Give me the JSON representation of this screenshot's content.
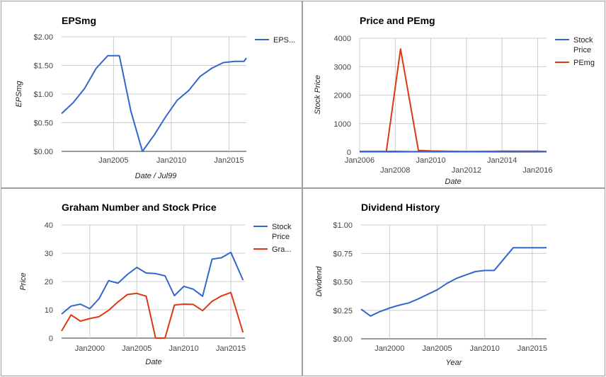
{
  "chart_data": [
    {
      "type": "line",
      "title": "EPSmg",
      "xlabel": "Date / Jul99",
      "ylabel": "EPSmg",
      "x_ticks": [
        "Jan2005",
        "Jan2010",
        "Jan2015"
      ],
      "y_ticks": [
        "$0.00",
        "$0.50",
        "$1.00",
        "$1.50",
        "$2.00"
      ],
      "xlim": [
        2000.5,
        2016.5
      ],
      "ylim": [
        0,
        2
      ],
      "legend_position": "right",
      "series": [
        {
          "name": "EPS...",
          "color": "#3366cc",
          "x": [
            2000.5,
            2001.5,
            2002.5,
            2003.5,
            2004.5,
            2005.5,
            2006.5,
            2007.5,
            2008.5,
            2009.5,
            2010.5,
            2011.5,
            2012.5,
            2013.5,
            2014.5,
            2015.5,
            2016.3,
            2016.5
          ],
          "values": [
            0.66,
            0.85,
            1.1,
            1.45,
            1.67,
            1.67,
            0.7,
            0.0,
            0.28,
            0.6,
            0.89,
            1.06,
            1.31,
            1.45,
            1.55,
            1.57,
            1.57,
            1.63
          ]
        }
      ]
    },
    {
      "type": "line",
      "title": "Price and PEmg",
      "xlabel": "Date",
      "ylabel": "Stock Price",
      "x_ticks": [
        "Jan2006",
        "Jan2008",
        "Jan2010",
        "Jan2012",
        "Jan2014",
        "Jan2016"
      ],
      "y_ticks": [
        "0",
        "1000",
        "2000",
        "3000",
        "4000"
      ],
      "xlim": [
        2006,
        2016.5
      ],
      "ylim": [
        0,
        4000
      ],
      "legend_position": "right",
      "series": [
        {
          "name": "Stock Price",
          "color": "#3366cc",
          "x": [
            2006,
            2007,
            2008,
            2009,
            2010,
            2011,
            2012,
            2013,
            2014,
            2015,
            2016,
            2016.5
          ],
          "values": [
            22,
            23,
            26,
            14,
            18,
            16,
            14,
            17,
            28,
            29,
            30,
            20
          ]
        },
        {
          "name": "PEmg",
          "color": "#dc3912",
          "x": [
            2006,
            2007,
            2007.5,
            2008.3,
            2009.3,
            2010,
            2011,
            2012,
            2013,
            2014,
            2015,
            2016,
            2016.5
          ],
          "values": [
            20,
            18,
            15,
            3620,
            60,
            40,
            28,
            18,
            22,
            30,
            25,
            26,
            15
          ]
        }
      ]
    },
    {
      "type": "line",
      "title": "Graham Number and Stock Price",
      "xlabel": "Date",
      "ylabel": "Price",
      "x_ticks": [
        "Jan2000",
        "Jan2005",
        "Jan2010",
        "Jan2015"
      ],
      "y_ticks": [
        "0",
        "10",
        "20",
        "30",
        "40"
      ],
      "xlim": [
        1997,
        2016.5
      ],
      "ylim": [
        0,
        40
      ],
      "legend_position": "right",
      "series": [
        {
          "name": "Stock Price",
          "color": "#3366cc",
          "x": [
            1997,
            1998,
            1999,
            2000,
            2001,
            2002,
            2003,
            2004,
            2005,
            2006,
            2007,
            2008,
            2009,
            2010,
            2011,
            2012,
            2013,
            2014,
            2015,
            2016.3
          ],
          "values": [
            8.5,
            11.3,
            12.0,
            10.4,
            14.0,
            20.3,
            19.4,
            22.5,
            25.0,
            23.0,
            22.8,
            22.0,
            15.0,
            18.3,
            17.3,
            14.8,
            27.9,
            28.4,
            30.3,
            20.5
          ]
        },
        {
          "name": "Gra...",
          "color": "#dc3912",
          "x": [
            1997,
            1998,
            1999,
            2000,
            2001,
            2002,
            2003,
            2004,
            2005,
            2006,
            2007,
            2008,
            2009,
            2010,
            2011,
            2012,
            2013,
            2014,
            2015,
            2016.3
          ],
          "values": [
            2.5,
            8.2,
            6.0,
            6.9,
            7.6,
            9.8,
            12.8,
            15.4,
            15.8,
            14.8,
            0.0,
            0.0,
            11.7,
            12.0,
            11.9,
            9.7,
            13.0,
            14.9,
            16.1,
            2.0
          ]
        }
      ]
    },
    {
      "type": "line",
      "title": "Dividend History",
      "xlabel": "Year",
      "ylabel": "Dividend",
      "x_ticks": [
        "Jan2000",
        "Jan2005",
        "Jan2010",
        "Jan2015"
      ],
      "y_ticks": [
        "$0.00",
        "$0.25",
        "$0.50",
        "$0.75",
        "$1.00"
      ],
      "xlim": [
        1997,
        2016.5
      ],
      "ylim": [
        0,
        1
      ],
      "series": [
        {
          "name": "",
          "color": "#3366cc",
          "x": [
            1997,
            1998,
            1999,
            2000,
            2001,
            2002,
            2003,
            2004,
            2005,
            2006,
            2007,
            2008,
            2009,
            2010,
            2011,
            2012,
            2013,
            2014,
            2015,
            2016.5
          ],
          "values": [
            0.26,
            0.2,
            0.24,
            0.27,
            0.295,
            0.315,
            0.35,
            0.39,
            0.43,
            0.485,
            0.53,
            0.56,
            0.59,
            0.6,
            0.6,
            0.7,
            0.8,
            0.8,
            0.8,
            0.8
          ]
        }
      ]
    }
  ]
}
